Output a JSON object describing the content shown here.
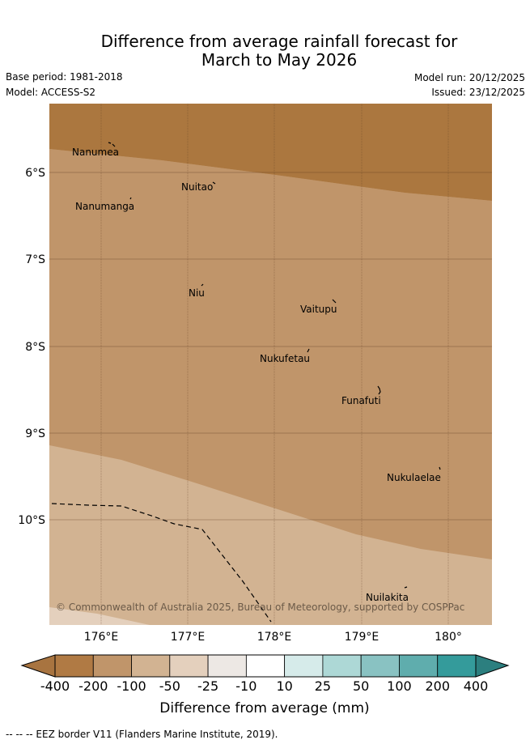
{
  "title": {
    "line1": "Difference from average rainfall forecast for",
    "line2": "March to May 2026"
  },
  "meta": {
    "base_period": "Base period: 1981-2018",
    "model": "Model: ACCESS-S2",
    "model_run": "Model run: 20/12/2025",
    "issued": "Issued: 23/12/2025"
  },
  "islands": [
    "Nanumea",
    "Nuitao",
    "Nanumanga",
    "Niu",
    "Vaitupu",
    "Nukufetau",
    "Funafuti",
    "Nukulaelae",
    "Nuilakita"
  ],
  "axes": {
    "lat_labels": [
      "6°S",
      "7°S",
      "8°S",
      "9°S",
      "10°S"
    ],
    "lon_labels": [
      "176°E",
      "177°E",
      "178°E",
      "179°E",
      "180°"
    ]
  },
  "copyright": "© Commonwealth of Australia 2025, Bureau of Meteorology, supported by COSPPac",
  "colorbar": {
    "title": "Difference from average (mm)",
    "tick_labels": [
      "-400",
      "-200",
      "-100",
      "-50",
      "-25",
      "-10",
      "10",
      "25",
      "50",
      "100",
      "200",
      "400"
    ],
    "colors": [
      "#a87440",
      "#b07a44",
      "#c0956a",
      "#d2b392",
      "#e4d0bd",
      "#ede8e4",
      "#ffffff",
      "#d6ebea",
      "#add8d6",
      "#89c2c2",
      "#5fadad",
      "#349b9b",
      "#2c7f7f"
    ]
  },
  "footer": "--  --  -- EEZ border V11 (Flanders Marine Institute, 2019)."
}
